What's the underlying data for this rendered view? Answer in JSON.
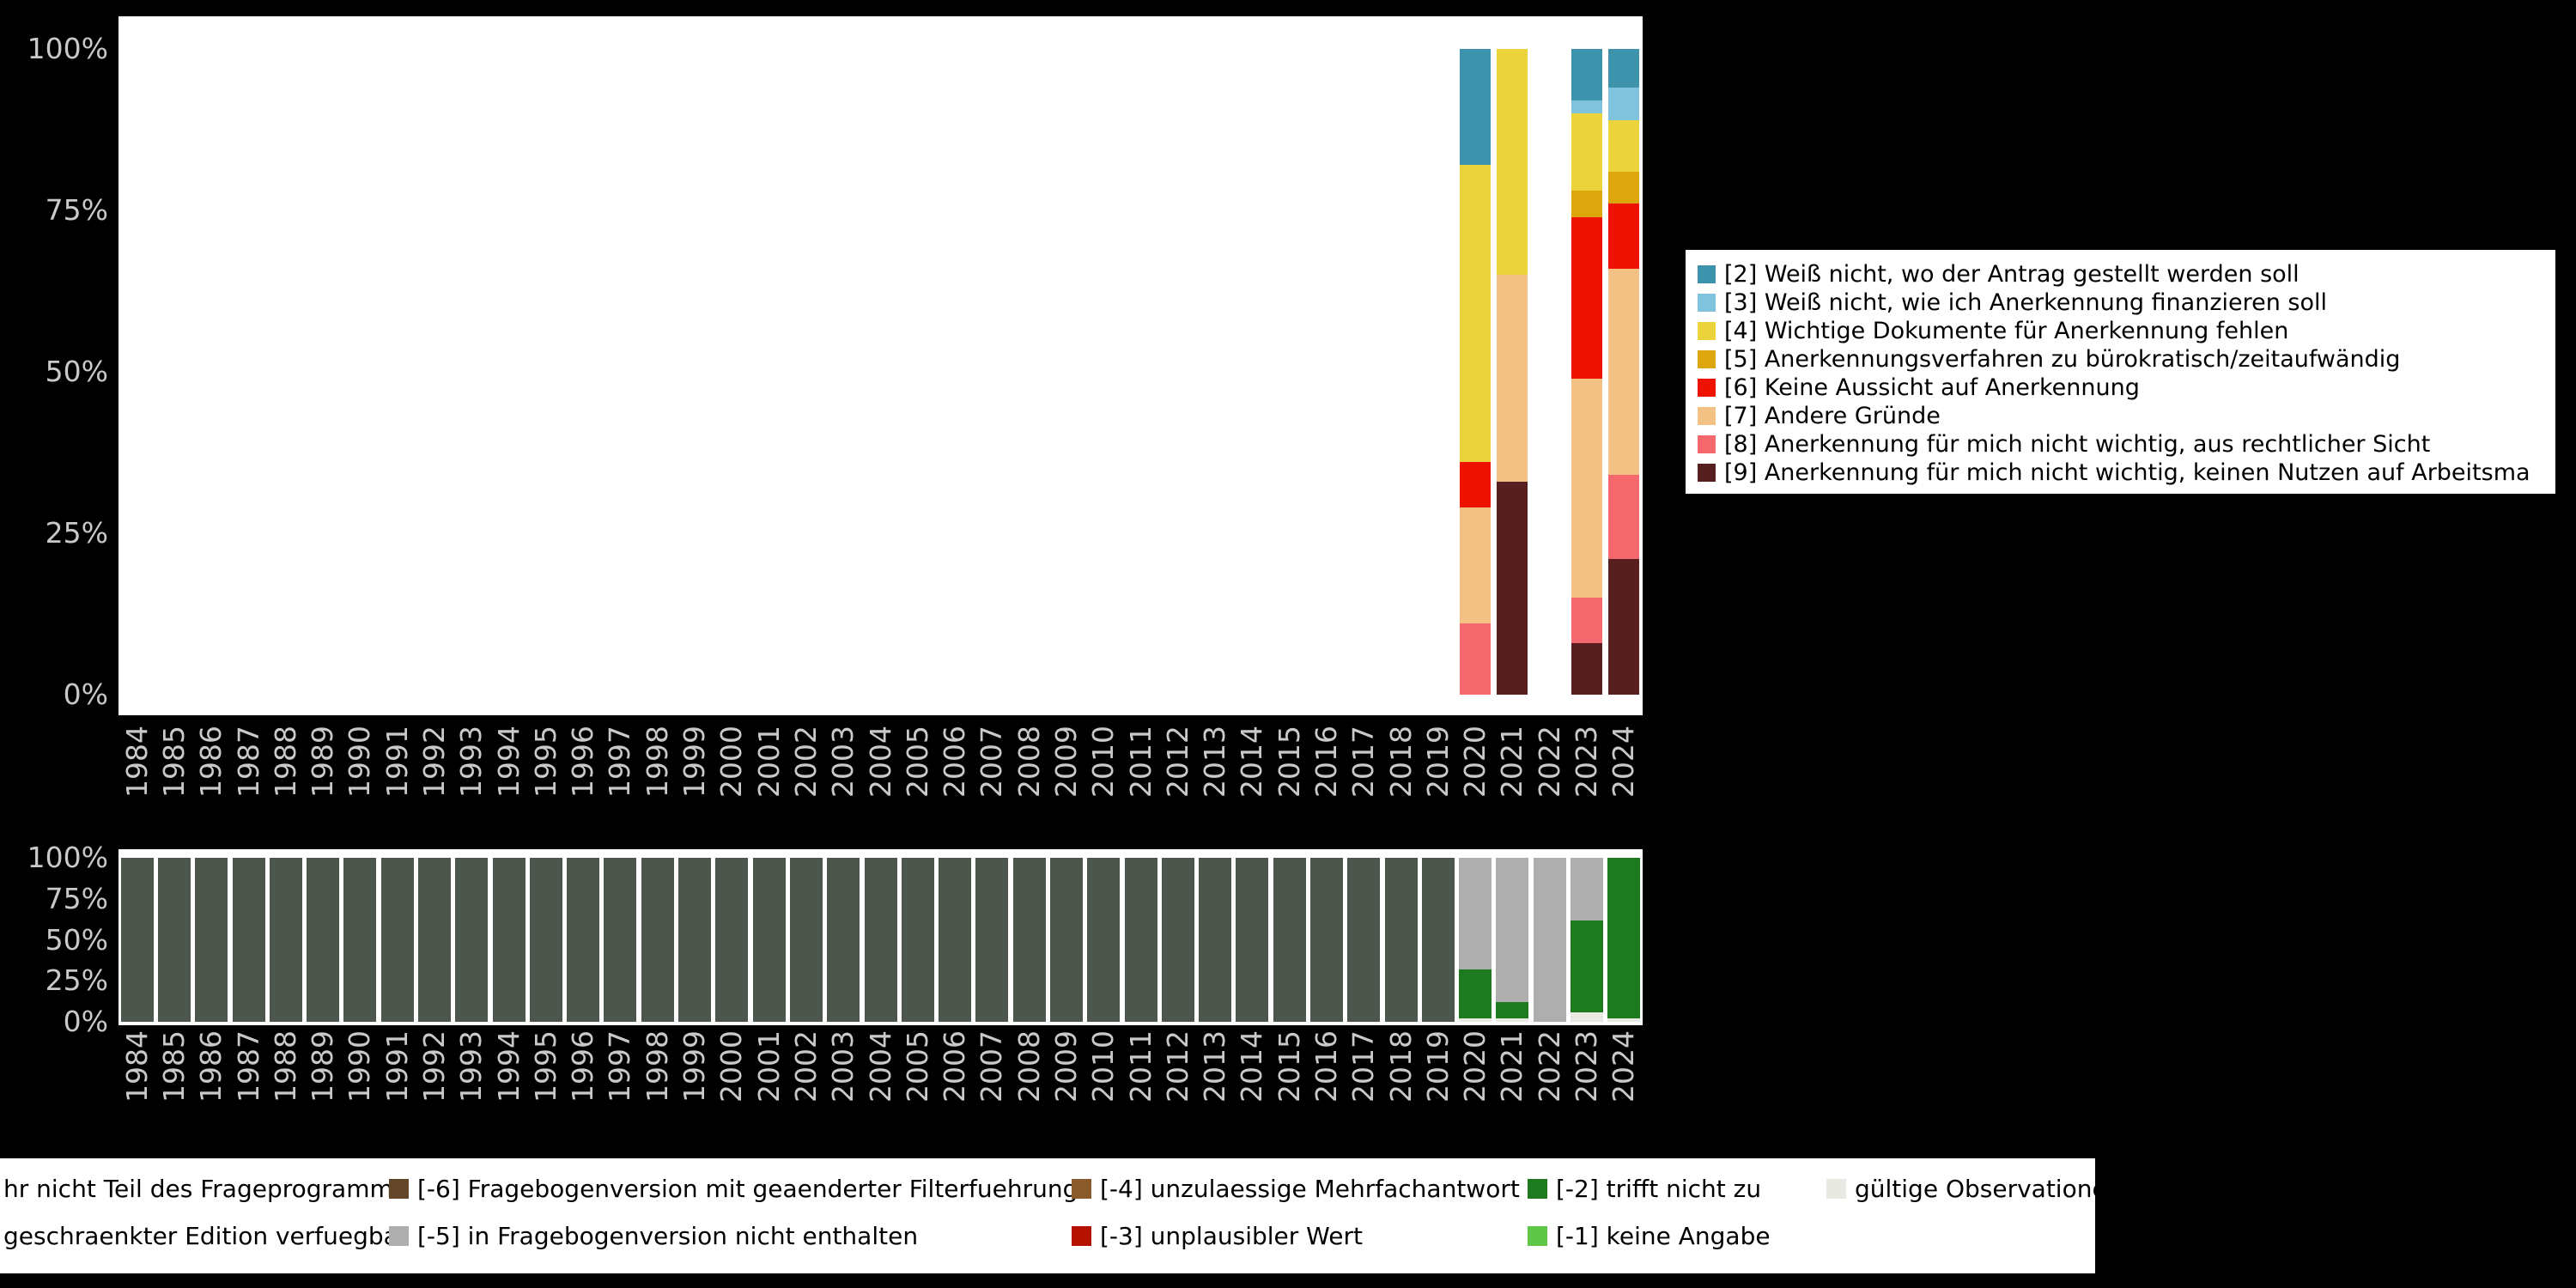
{
  "colors": {
    "page_bg": "#000000",
    "plot_bg": "#ffffff",
    "axis_text": "#c9c9c9",
    "legend_bg": "#ffffff",
    "legend_text": "#000000"
  },
  "years": [
    "1984",
    "1985",
    "1986",
    "1987",
    "1988",
    "1989",
    "1990",
    "1991",
    "1992",
    "1993",
    "1994",
    "1995",
    "1996",
    "1997",
    "1998",
    "1999",
    "2000",
    "2001",
    "2002",
    "2003",
    "2004",
    "2005",
    "2006",
    "2007",
    "2008",
    "2009",
    "2010",
    "2011",
    "2012",
    "2013",
    "2014",
    "2015",
    "2016",
    "2017",
    "2018",
    "2019",
    "2020",
    "2021",
    "2022",
    "2023",
    "2024"
  ],
  "y_ticks": [
    {
      "label": "100%",
      "pct": 100
    },
    {
      "label": "75%",
      "pct": 75
    },
    {
      "label": "50%",
      "pct": 50
    },
    {
      "label": "25%",
      "pct": 25
    },
    {
      "label": "0%",
      "pct": 0
    }
  ],
  "chart_data": [
    {
      "id": "answer-distribution",
      "type": "bar",
      "stacked": true,
      "title": "",
      "xlabel": "",
      "ylabel": "",
      "ylim": [
        0,
        100
      ],
      "grid": false,
      "legend_position": "right",
      "x_categories": "years 1984-2024, bars only for 2020, 2021, 2023, 2024",
      "series": [
        {
          "key": "9",
          "label": "[9] Anerkennung für mich nicht wichtig, keinen Nutzen auf Arbeitsma",
          "color": "#571f20",
          "values": {
            "2021": 33,
            "2023": 8,
            "2024": 21
          }
        },
        {
          "key": "8",
          "label": "[8] Anerkennung für mich nicht wichtig, aus rechtlicher Sicht",
          "color": "#f5686e",
          "values": {
            "2020": 11,
            "2023": 7,
            "2024": 13
          }
        },
        {
          "key": "7",
          "label": "[7] Andere Gründe",
          "color": "#f3c183",
          "values": {
            "2020": 18,
            "2021": 32,
            "2023": 34,
            "2024": 32
          }
        },
        {
          "key": "6",
          "label": "[6] Keine Aussicht auf Anerkennung",
          "color": "#ee1300",
          "values": {
            "2020": 7,
            "2023": 25,
            "2024": 10
          }
        },
        {
          "key": "5",
          "label": "[5] Anerkennungsverfahren zu bürokratisch/zeitaufwändig",
          "color": "#dca60c",
          "values": {
            "2023": 4,
            "2024": 5
          }
        },
        {
          "key": "4",
          "label": "[4] Wichtige Dokumente für Anerkennung fehlen",
          "color": "#ead33b",
          "values": {
            "2020": 46,
            "2021": 35,
            "2023": 12,
            "2024": 8
          }
        },
        {
          "key": "3",
          "label": "[3] Weiß nicht, wie ich Anerkennung finanzieren soll",
          "color": "#7fc3dc",
          "values": {
            "2023": 2,
            "2024": 5
          }
        },
        {
          "key": "2",
          "label": "[2] Weiß nicht, wo der Antrag gestellt werden soll",
          "color": "#3d93ab",
          "values": {
            "2020": 18,
            "2023": 8,
            "2024": 6
          }
        }
      ]
    },
    {
      "id": "missing-codes-distribution",
      "type": "bar",
      "stacked": true,
      "title": "",
      "xlabel": "",
      "ylabel": "",
      "ylim": [
        0,
        100
      ],
      "grid": false,
      "legend_position": "bottom",
      "x_categories": "years 1984-2024, one bar per year",
      "series": [
        {
          "key": "valid",
          "label": "gültige Observationen",
          "color": "#e9e9e4",
          "values": {
            "2020": 2,
            "2021": 2,
            "2023": 6,
            "2024": 2
          }
        },
        {
          "key": "-1",
          "label": "[-1] keine Angabe",
          "color": "#5ec748",
          "values": {}
        },
        {
          "key": "-2",
          "label": "[-2] trifft nicht zu",
          "color": "#1d7a1e",
          "values": {
            "2020": 30,
            "2021": 10,
            "2023": 56,
            "2024": 98
          }
        },
        {
          "key": "-3",
          "label": "[-3] unplausibler Wert",
          "color": "#b51200",
          "values": {}
        },
        {
          "key": "-4",
          "label": "[-4] unzulaessige Mehrfachantwort",
          "color": "#8a5a2b",
          "values": {}
        },
        {
          "key": "-5",
          "label": "[-5] in Fragebogenversion nicht enthalten",
          "color": "#aeaeae",
          "values": {
            "2020": 68,
            "2021": 88,
            "2022": 100,
            "2023": 38
          }
        },
        {
          "key": "-6",
          "label": "[-6] Fragebogenversion mit geaenderter Filterfuehrung",
          "color": "#63462a",
          "values": {}
        },
        {
          "key": "-7",
          "label": "geschraenkter Edition verfuegbar",
          "color": "#8f968f",
          "values": {}
        },
        {
          "key": "-8",
          "label": "hr nicht Teil des Frageprogramms",
          "color": "#4d564d",
          "values": {},
          "fill_range": {
            "from": 1984,
            "to": 2019,
            "value": 100
          }
        }
      ]
    }
  ],
  "bottom_legend": {
    "rows": [
      [
        {
          "text": "hr nicht Teil des Frageprogramms",
          "color": null,
          "x": 4
        },
        {
          "text": "[-6] Fragebogenversion mit geaenderter Filterfuehrung",
          "color": "#63462a",
          "x": 453
        },
        {
          "text": "[-4] unzulaessige Mehrfachantwort",
          "color": "#8a5a2b",
          "x": 1248
        },
        {
          "text": "[-2] trifft nicht zu",
          "color": "#1d7a1e",
          "x": 1779
        },
        {
          "text": "gültige Observationen",
          "color": "#e9e9e4",
          "x": 2127
        }
      ],
      [
        {
          "text": "geschraenkter Edition verfuegbar",
          "color": null,
          "x": 4
        },
        {
          "text": "[-5] in Fragebogenversion nicht enthalten",
          "color": "#aeaeae",
          "x": 453
        },
        {
          "text": "[-3] unplausibler Wert",
          "color": "#b51200",
          "x": 1248
        },
        {
          "text": "[-1] keine Angabe",
          "color": "#5ec748",
          "x": 1779
        }
      ]
    ]
  }
}
